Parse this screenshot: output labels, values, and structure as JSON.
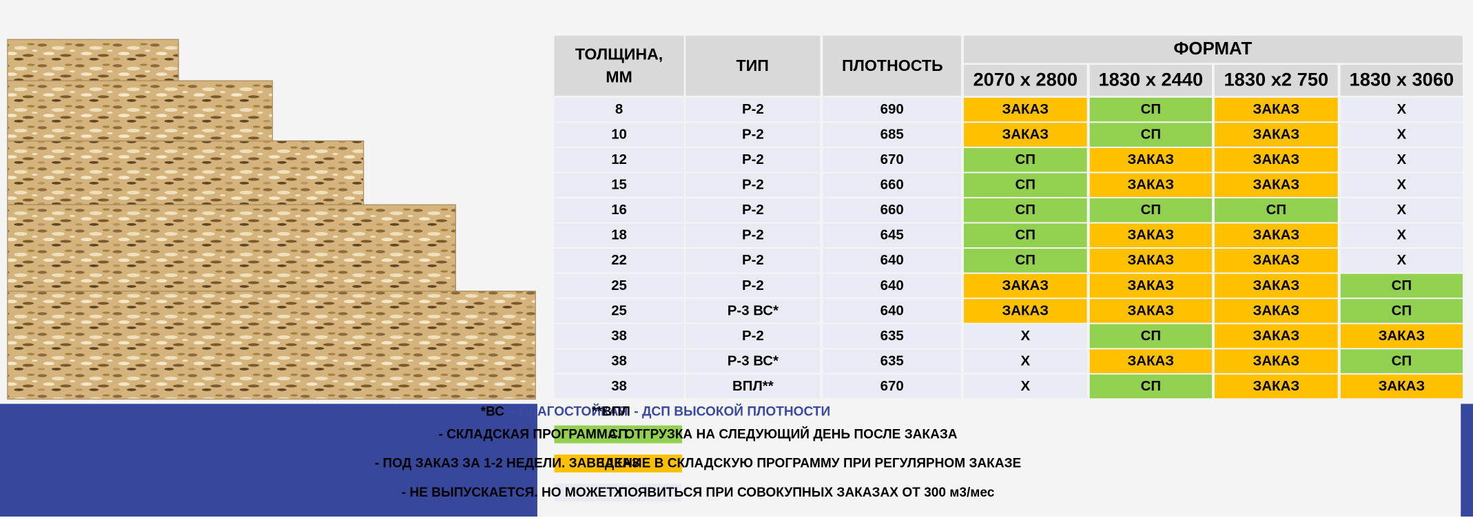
{
  "table": {
    "header": {
      "thickness": [
        "ТОЛЩИНА,",
        "ММ"
      ],
      "type": "ТИП",
      "density": "ПЛОТНОСТЬ",
      "format": "ФОРМАТ",
      "sizes": [
        "2070 x 2800",
        "1830 x 2440",
        "1830 x2 750",
        "1830 x 3060"
      ]
    },
    "rows": [
      [
        "8",
        "Р-2",
        "690",
        "ЗАКАЗ",
        "СП",
        "ЗАКАЗ",
        "Х"
      ],
      [
        "10",
        "Р-2",
        "685",
        "ЗАКАЗ",
        "СП",
        "ЗАКАЗ",
        "Х"
      ],
      [
        "12",
        "Р-2",
        "670",
        "СП",
        "ЗАКАЗ",
        "ЗАКАЗ",
        "Х"
      ],
      [
        "15",
        "Р-2",
        "660",
        "СП",
        "ЗАКАЗ",
        "ЗАКАЗ",
        "Х"
      ],
      [
        "16",
        "Р-2",
        "660",
        "СП",
        "СП",
        "СП",
        "Х"
      ],
      [
        "18",
        "Р-2",
        "645",
        "СП",
        "ЗАКАЗ",
        "ЗАКАЗ",
        "Х"
      ],
      [
        "22",
        "Р-2",
        "640",
        "СП",
        "ЗАКАЗ",
        "ЗАКАЗ",
        "Х"
      ],
      [
        "25",
        "Р-2",
        "640",
        "ЗАКАЗ",
        "ЗАКАЗ",
        "ЗАКАЗ",
        "СП"
      ],
      [
        "25",
        "Р-3 ВС*",
        "640",
        "ЗАКАЗ",
        "ЗАКАЗ",
        "ЗАКАЗ",
        "СП"
      ],
      [
        "38",
        "Р-2",
        "635",
        "Х",
        "СП",
        "ЗАКАЗ",
        "ЗАКАЗ"
      ],
      [
        "38",
        "Р-3 ВС*",
        "635",
        "Х",
        "ЗАКАЗ",
        "ЗАКАЗ",
        "СП"
      ],
      [
        "38",
        "ВПЛ**",
        "670",
        "Х",
        "СП",
        "ЗАКАЗ",
        "ЗАКАЗ"
      ]
    ]
  },
  "notes": [
    {
      "key": "*ВС",
      "text": "– ВЛАГОСТОЙКАЯ"
    },
    {
      "key": "**ВПЛ",
      "text": "- ДСП ВЫСОКОЙ ПЛОТНОСТИ"
    }
  ],
  "legend": [
    {
      "label": "СП",
      "color": "#92d050",
      "text": "- СКЛАДСКАЯ ПРОГРАММА. ОТГРУЗКА НА СЛЕДУЮЩИЙ ДЕНЬ ПОСЛЕ ЗАКАЗА"
    },
    {
      "label": "ЗАКАЗ",
      "color": "#ffc000",
      "text": "- ПОД ЗАКАЗ ЗА 1-2 НЕДЕЛИ. ЗАВЕДЕНИЕ В СКЛАДСКУЮ ПРОГРАММУ ПРИ РЕГУЛЯРНОМ ЗАКАЗЕ"
    },
    {
      "label": "Х",
      "color": "#e8ebf4",
      "text": "- НЕ ВЫПУСКАЕТСЯ. НО МОЖЕТ ПОЯВИТЬСЯ ПРИ СОВОКУПНЫХ ЗАКАЗАХ ОТ 300 м3/мес"
    }
  ]
}
